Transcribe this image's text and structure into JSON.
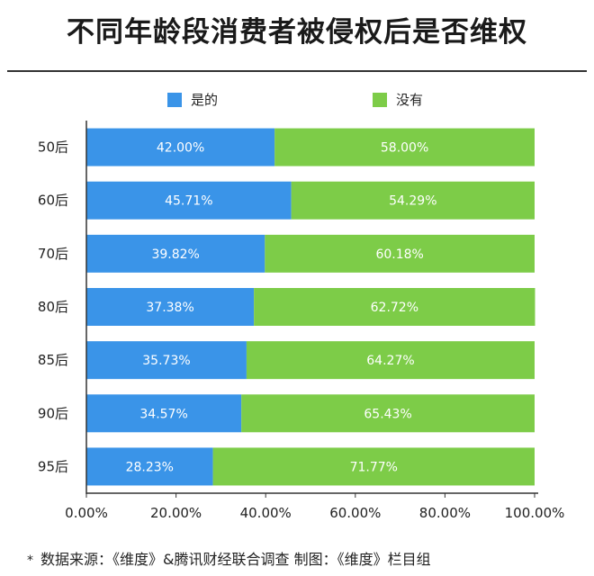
{
  "title": "不同年龄段消费者被侵权后是否维权",
  "footnote": "数据来源：《维度》&腾讯财经联合调查    制图：《维度》栏目组",
  "footnote_mark": "*",
  "colors": {
    "yes": "#3a94e8",
    "no": "#7dcc48",
    "axis": "#333333",
    "grid": "#dddddd"
  },
  "chart_data": {
    "type": "bar",
    "orientation": "horizontal",
    "stacked": true,
    "categories": [
      "50后",
      "60后",
      "70后",
      "80后",
      "85后",
      "90后",
      "95后"
    ],
    "series": [
      {
        "name": "是的",
        "color": "#3a94e8",
        "values": [
          42.0,
          45.71,
          39.82,
          37.38,
          35.73,
          34.57,
          28.23
        ]
      },
      {
        "name": "没有",
        "color": "#7dcc48",
        "values": [
          58.0,
          54.29,
          60.18,
          62.72,
          64.27,
          65.43,
          71.77
        ]
      }
    ],
    "data_labels": [
      [
        "42.00%",
        "45.71%",
        "39.82%",
        "37.38%",
        "35.73%",
        "34.57%",
        "28.23%"
      ],
      [
        "58.00%",
        "54.29%",
        "60.18%",
        "62.72%",
        "64.27%",
        "65.43%",
        "71.77%"
      ]
    ],
    "xlim": [
      0,
      100
    ],
    "xticks": [
      "0.00%",
      "20.00%",
      "40.00%",
      "60.00%",
      "80.00%",
      "100.00%"
    ],
    "legend_position": "top"
  }
}
